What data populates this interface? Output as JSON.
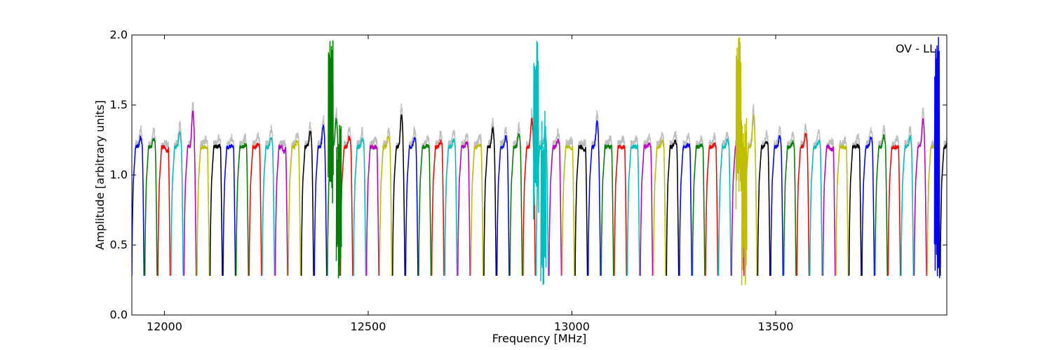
{
  "chart_data": {
    "type": "line",
    "title": "",
    "xlabel": "Frequency [MHz]",
    "ylabel": "Amplitude [arbitrary units]",
    "annotation": "OV - LL",
    "annotation_position": "top-right",
    "xlim": [
      11920,
      13920
    ],
    "ylim": [
      0.0,
      2.0
    ],
    "x_ticks": [
      12000,
      12500,
      13000,
      13500
    ],
    "x_tick_labels": [
      "12000",
      "12500",
      "13000",
      "13500"
    ],
    "y_ticks": [
      0.0,
      0.5,
      1.0,
      1.5,
      2.0
    ],
    "y_tick_labels": [
      "0.0",
      "0.5",
      "1.0",
      "1.5",
      "2.0"
    ],
    "grid": false,
    "legend": "none",
    "series_color_cycle": [
      "#0000ff",
      "#008000",
      "#ff0000",
      "#00bfbf",
      "#bf00bf",
      "#bfbf00",
      "#000000"
    ],
    "background_trace_color": "#bfbfbf",
    "band_spacing_mhz": 32,
    "band_width_mhz": 30,
    "band_shape": {
      "description": "each channel band: steep rise from ~0.28 to ~1.1, flat-ish top ~1.2, peak near band edge, steep fall to ~0.28",
      "min_amplitude": 0.28,
      "typical_top": 1.2
    },
    "band_starts_mhz": [
      11920,
      11952,
      11984,
      12016,
      12048,
      12080,
      12112,
      12144,
      12176,
      12208,
      12240,
      12272,
      12304,
      12336,
      12368,
      12400,
      12432,
      12464,
      12496,
      12528,
      12560,
      12592,
      12624,
      12656,
      12688,
      12720,
      12752,
      12784,
      12816,
      12848,
      12880,
      12912,
      12944,
      12976,
      13008,
      13040,
      13072,
      13104,
      13136,
      13168,
      13200,
      13232,
      13264,
      13296,
      13328,
      13360,
      13392,
      13424,
      13456,
      13488,
      13520,
      13552,
      13584,
      13616,
      13648,
      13680,
      13712,
      13744,
      13776,
      13808,
      13840,
      13872,
      13904
    ],
    "band_peaks": [
      1.27,
      1.26,
      1.17,
      1.3,
      1.45,
      1.2,
      1.21,
      1.21,
      1.21,
      1.22,
      1.27,
      1.17,
      1.24,
      1.31,
      1.35,
      1.4,
      1.27,
      1.26,
      1.2,
      1.27,
      1.43,
      1.26,
      1.21,
      1.24,
      1.25,
      1.23,
      1.22,
      1.33,
      1.27,
      1.29,
      1.4,
      1.27,
      1.25,
      1.19,
      1.17,
      1.38,
      1.2,
      1.2,
      1.2,
      1.22,
      1.24,
      1.24,
      1.22,
      1.21,
      1.22,
      1.25,
      1.4,
      1.42,
      1.24,
      1.27,
      1.23,
      1.29,
      1.24,
      1.18,
      1.19,
      1.21,
      1.27,
      1.28,
      1.2,
      1.27,
      1.4,
      1.3,
      1.4
    ],
    "spikes": [
      {
        "x": 12408,
        "y_top": 2.0,
        "y_bottom": 0.73,
        "color": "#008000"
      },
      {
        "x": 12428,
        "y_top": 1.41,
        "y_bottom": 0.22,
        "color": "#008000"
      },
      {
        "x": 12912,
        "y_top": 2.0,
        "y_bottom": 0.68,
        "color": "#00bfbf"
      },
      {
        "x": 12930,
        "y_top": 1.46,
        "y_bottom": 0.2,
        "color": "#00bfbf"
      },
      {
        "x": 13409,
        "y_top": 2.0,
        "y_bottom": 0.75,
        "color": "#bfbf00"
      },
      {
        "x": 13423,
        "y_top": 1.42,
        "y_bottom": 0.19,
        "color": "#bfbf00"
      },
      {
        "x": 13896,
        "y_top": 2.0,
        "y_bottom": 0.22,
        "color": "#0000ff"
      }
    ]
  }
}
